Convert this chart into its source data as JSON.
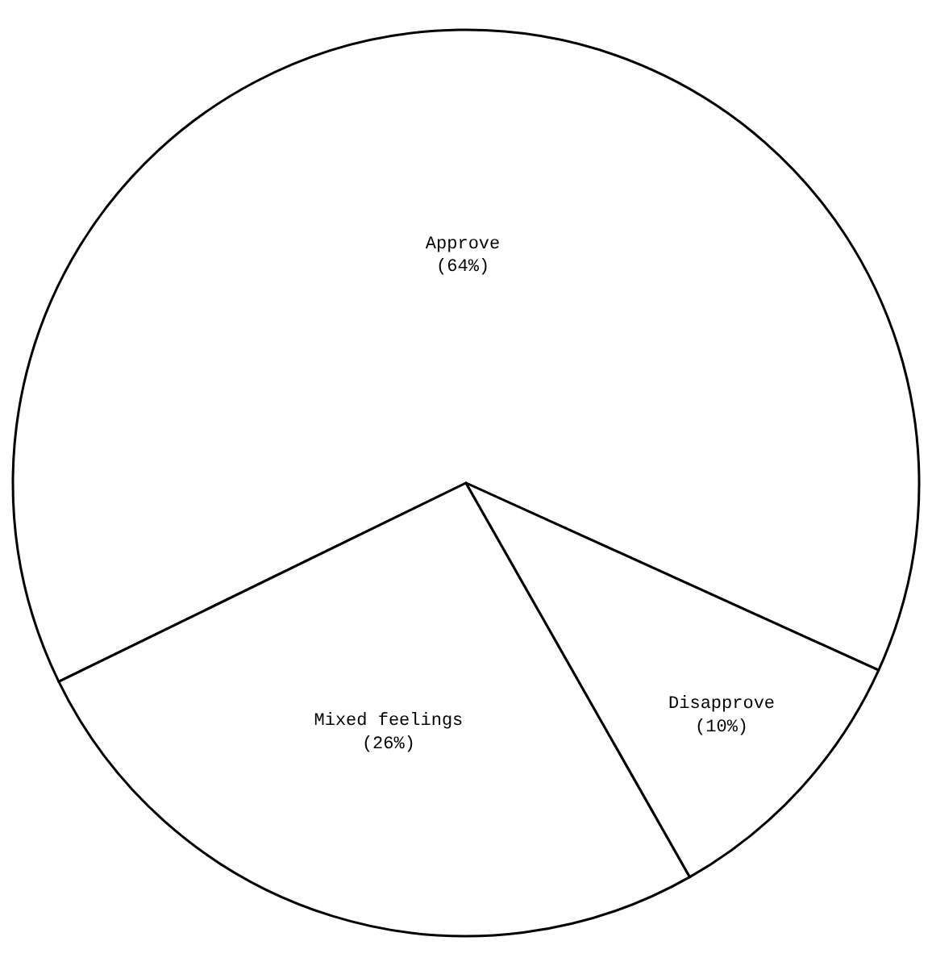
{
  "chart_data": {
    "type": "pie",
    "categories": [
      "Approve",
      "Mixed feelings",
      "Disapprove"
    ],
    "values": [
      64,
      26,
      10
    ],
    "colors": [
      "#ffffff",
      "#ffffff",
      "#ffffff"
    ],
    "value_labels": [
      "(64%)",
      "(26%)",
      "(10%)"
    ]
  }
}
